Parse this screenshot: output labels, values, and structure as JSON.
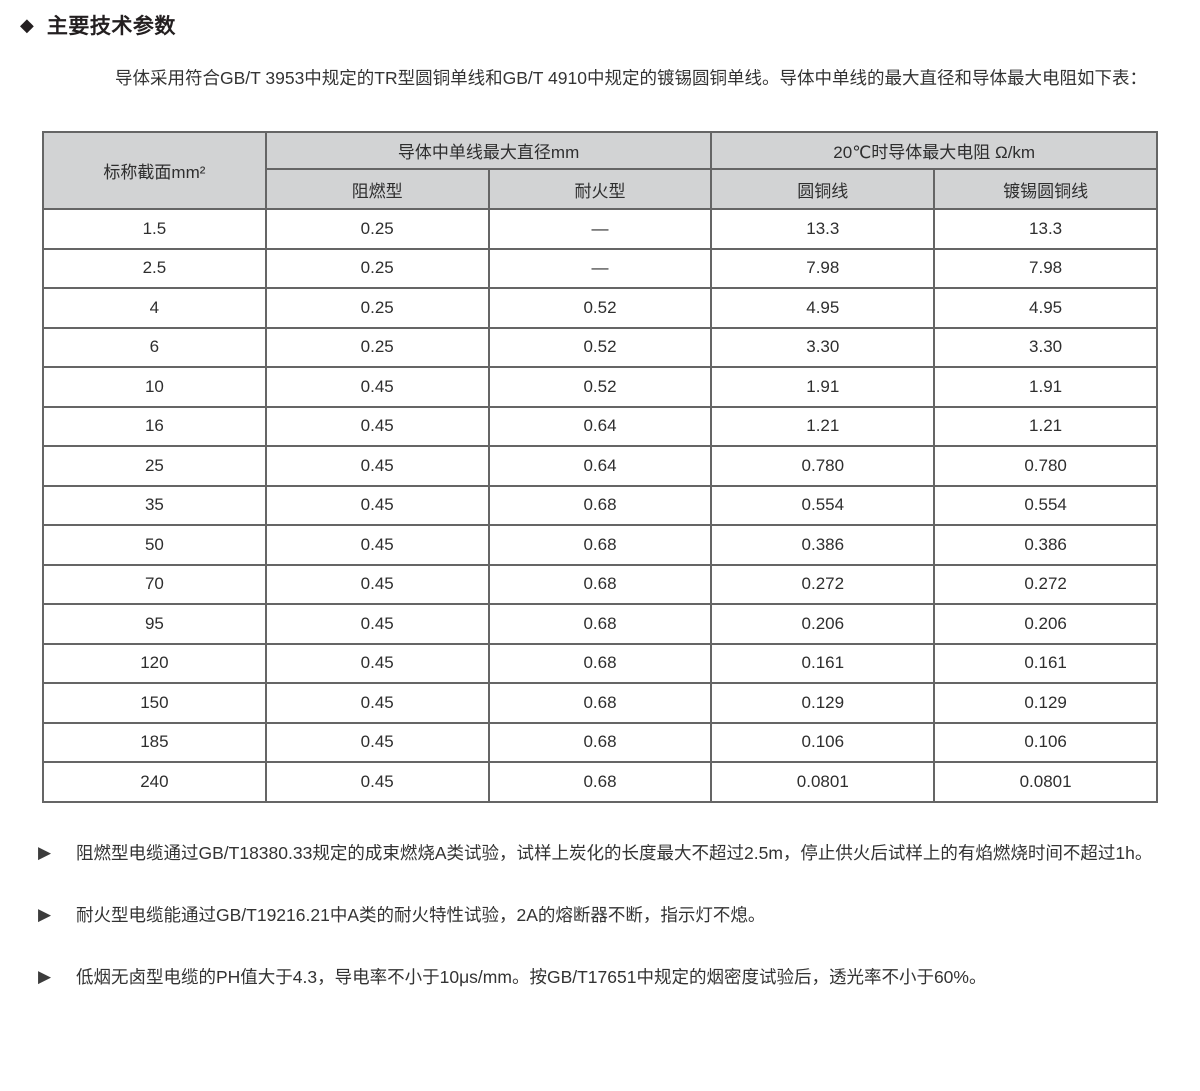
{
  "title": {
    "marker": "◆",
    "text": "主要技术参数"
  },
  "intro": "导体采用符合GB/T 3953中规定的TR型圆铜单线和GB/T 4910中规定的镀锡圆铜单线。导体中单线的最大直径和导体最大电阻如下表：",
  "table": {
    "col1_header": "标称截面mm²",
    "group_headers": [
      "导体中单线最大直径mm",
      "20℃时导体最大电阻 Ω/km"
    ],
    "sub_headers": [
      "阻燃型",
      "耐火型",
      "圆铜线",
      "镀锡圆铜线"
    ],
    "rows": [
      [
        "1.5",
        "0.25",
        "—",
        "13.3",
        "13.3"
      ],
      [
        "2.5",
        "0.25",
        "—",
        "7.98",
        "7.98"
      ],
      [
        "4",
        "0.25",
        "0.52",
        "4.95",
        "4.95"
      ],
      [
        "6",
        "0.25",
        "0.52",
        "3.30",
        "3.30"
      ],
      [
        "10",
        "0.45",
        "0.52",
        "1.91",
        "1.91"
      ],
      [
        "16",
        "0.45",
        "0.64",
        "1.21",
        "1.21"
      ],
      [
        "25",
        "0.45",
        "0.64",
        "0.780",
        "0.780"
      ],
      [
        "35",
        "0.45",
        "0.68",
        "0.554",
        "0.554"
      ],
      [
        "50",
        "0.45",
        "0.68",
        "0.386",
        "0.386"
      ],
      [
        "70",
        "0.45",
        "0.68",
        "0.272",
        "0.272"
      ],
      [
        "95",
        "0.45",
        "0.68",
        "0.206",
        "0.206"
      ],
      [
        "120",
        "0.45",
        "0.68",
        "0.161",
        "0.161"
      ],
      [
        "150",
        "0.45",
        "0.68",
        "0.129",
        "0.129"
      ],
      [
        "185",
        "0.45",
        "0.68",
        "0.106",
        "0.106"
      ],
      [
        "240",
        "0.45",
        "0.68",
        "0.0801",
        "0.0801"
      ]
    ]
  },
  "notes": {
    "marker": "▶",
    "items": [
      "阻燃型电缆通过GB/T18380.33规定的成束燃烧A类试验，试样上炭化的长度最大不超过2.5m，停止供火后试样上的有焰燃烧时间不超过1h。",
      "耐火型电缆能通过GB/T19216.21中A类的耐火特性试验，2A的熔断器不断，指示灯不熄。",
      "低烟无卤型电缆的PH值大于4.3，导电率不小于10μs/mm。按GB/T17651中规定的烟密度试验后，透光率不小于60%。"
    ]
  },
  "colors": {
    "header_bg": "#d2d3d4",
    "border": "#656565",
    "title_color": "#231f20"
  }
}
